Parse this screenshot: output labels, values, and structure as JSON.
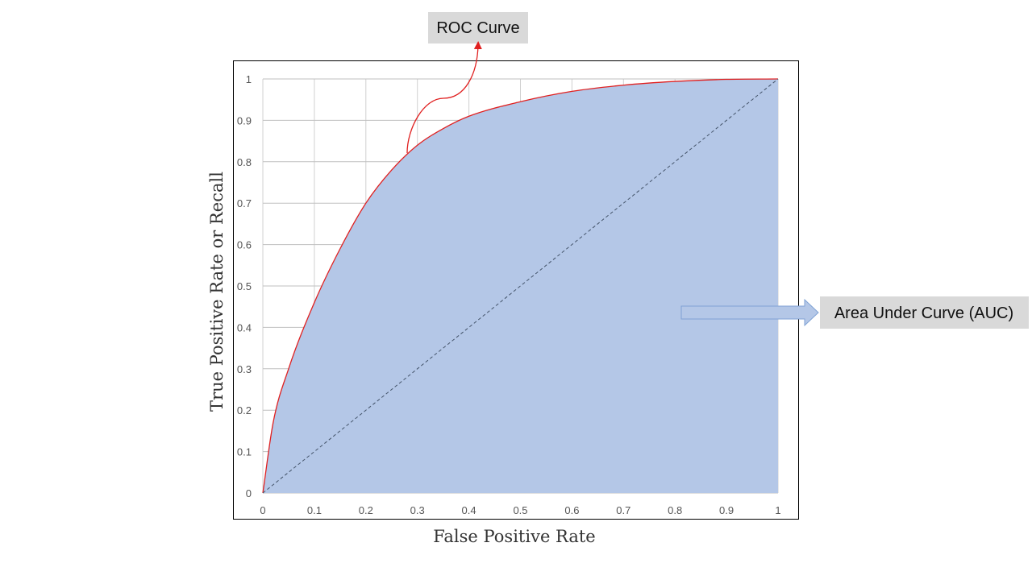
{
  "chart_data": {
    "type": "area",
    "xlabel": "False Positive Rate",
    "ylabel": "True Positive Rate or Recall",
    "xlim": [
      0,
      1
    ],
    "ylim": [
      0,
      1
    ],
    "x_ticks": [
      "0",
      "0.1",
      "0.2",
      "0.3",
      "0.4",
      "0.5",
      "0.6",
      "0.7",
      "0.8",
      "0.9",
      "1"
    ],
    "y_ticks": [
      "0",
      "0.1",
      "0.2",
      "0.3",
      "0.4",
      "0.5",
      "0.6",
      "0.7",
      "0.8",
      "0.9",
      "1"
    ],
    "grid": true,
    "series": [
      {
        "x": [
          0,
          0.02,
          0.05,
          0.1,
          0.15,
          0.2,
          0.25,
          0.3,
          0.35,
          0.4,
          0.5,
          0.6,
          0.7,
          0.8,
          0.9,
          1
        ],
        "y": [
          0,
          0.17,
          0.3,
          0.46,
          0.59,
          0.7,
          0.78,
          0.84,
          0.88,
          0.91,
          0.945,
          0.97,
          0.985,
          0.994,
          0.999,
          1
        ],
        "color": "#e02020",
        "fill": "#b4c7e7"
      },
      {
        "x": [
          0,
          1
        ],
        "y": [
          0,
          1
        ],
        "color": "#44546a",
        "style": "dashed"
      }
    ],
    "annotations": [
      {
        "text": "ROC Curve",
        "points_to": [
          0.28,
          0.82
        ]
      },
      {
        "text": "Area Under Curve (AUC)",
        "points_to": [
          0.81,
          0.44
        ]
      }
    ]
  }
}
